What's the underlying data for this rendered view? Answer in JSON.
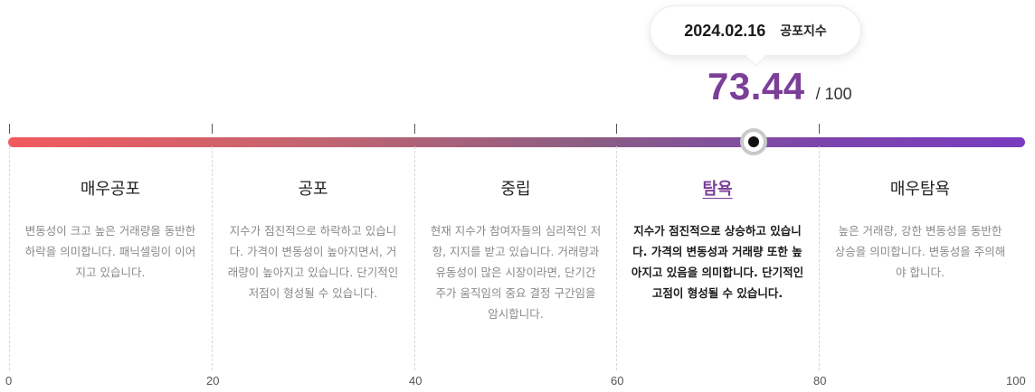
{
  "tooltip": {
    "date": "2024.02.16",
    "label": "공포지수"
  },
  "score": {
    "value": "73.44",
    "max": "/ 100"
  },
  "gauge": {
    "current": 73.44,
    "min": 0,
    "max": 100,
    "gradient_start": "#f25a5e",
    "gradient_end": "#7a3bc0",
    "accent": "#7b3f98"
  },
  "axis": {
    "labels": [
      "0",
      "20",
      "40",
      "60",
      "80",
      "100"
    ]
  },
  "columns": [
    {
      "title": "매우공포",
      "desc": "변동성이 크고 높은 거래량을 동반한 하락을 의미합니다. 패닉셀링이 이어지고 있습니다.",
      "active": false
    },
    {
      "title": "공포",
      "desc": "지수가 점진적으로 하락하고 있습니다. 가격이 변동성이 높아지면서, 거래량이 높아지고 있습니다. 단기적인 저점이 형성될 수 있습니다.",
      "active": false
    },
    {
      "title": "중립",
      "desc": "현재 지수가 참여자들의 심리적인 저항, 지지를 받고 있습니다. 거래량과 유동성이 많은 시장이라면, 단기간 주가 움직임의 중요 결정 구간임을 암시합니다.",
      "active": false
    },
    {
      "title": "탐욕",
      "desc": "지수가 점진적으로 상승하고 있습니다. 가격의 변동성과 거래량 또한 높아지고 있음을 의미합니다. 단기적인 고점이 형성될 수 있습니다.",
      "active": true
    },
    {
      "title": "매우탐욕",
      "desc": "높은 거래량, 강한 변동성을 동반한 상승을 의미합니다. 변동성을 주의해야 합니다.",
      "active": false
    }
  ]
}
